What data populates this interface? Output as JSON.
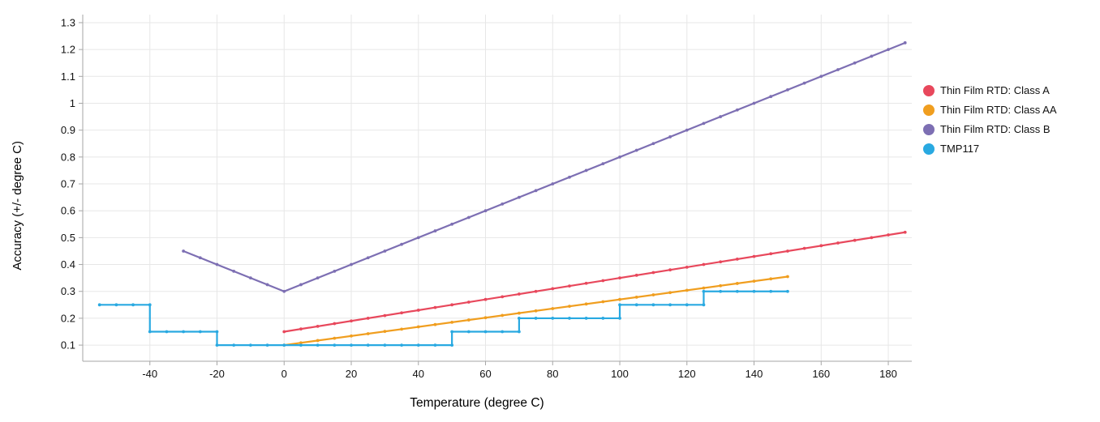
{
  "chart_data": {
    "type": "line",
    "title": "",
    "xlabel": "Temperature (degree C)",
    "ylabel": "Accuracy (+/- degree C)",
    "xlim": [
      -60,
      187
    ],
    "ylim": [
      0.04,
      1.33
    ],
    "grid": true,
    "legend_position": "right",
    "axis_color": "#a6a6a6",
    "grid_color": "#e7e7e7",
    "tick_label_color": "#111111",
    "marker_step": 5,
    "x_ticks": [
      {
        "value": -40,
        "label": "-40"
      },
      {
        "value": -20,
        "label": "-20"
      },
      {
        "value": 0,
        "label": "0"
      },
      {
        "value": 20,
        "label": "20"
      },
      {
        "value": 40,
        "label": "40"
      },
      {
        "value": 60,
        "label": "60"
      },
      {
        "value": 80,
        "label": "80"
      },
      {
        "value": 100,
        "label": "100"
      },
      {
        "value": 120,
        "label": "120"
      },
      {
        "value": 140,
        "label": "140"
      },
      {
        "value": 160,
        "label": "160"
      },
      {
        "value": 180,
        "label": "180"
      }
    ],
    "y_ticks": [
      {
        "value": 0.1,
        "label": "0.1"
      },
      {
        "value": 0.2,
        "label": "0.2"
      },
      {
        "value": 0.3,
        "label": "0.3"
      },
      {
        "value": 0.4,
        "label": "0.4"
      },
      {
        "value": 0.5,
        "label": "0.5"
      },
      {
        "value": 0.6,
        "label": "0.6"
      },
      {
        "value": 0.7,
        "label": "0.7"
      },
      {
        "value": 0.8,
        "label": "0.8"
      },
      {
        "value": 0.9,
        "label": "0.9"
      },
      {
        "value": 1.0,
        "label": "1"
      },
      {
        "value": 1.1,
        "label": "1.1"
      },
      {
        "value": 1.2,
        "label": "1.2"
      },
      {
        "value": 1.3,
        "label": "1.3"
      }
    ],
    "series": [
      {
        "name": "Thin Film RTD: Class A",
        "color": "#e8485c",
        "points": [
          [
            0,
            0.15
          ],
          [
            185,
            0.52
          ]
        ]
      },
      {
        "name": "Thin Film RTD: Class AA",
        "color": "#f09e1f",
        "points": [
          [
            0,
            0.1
          ],
          [
            150,
            0.355
          ]
        ]
      },
      {
        "name": "Thin Film RTD: Class B",
        "color": "#7d6fb3",
        "points": [
          [
            -30,
            0.45
          ],
          [
            0,
            0.3
          ],
          [
            185,
            1.225
          ]
        ]
      },
      {
        "name": "TMP117",
        "color": "#29a9e1",
        "points": [
          [
            -55,
            0.25
          ],
          [
            -40,
            0.25
          ],
          [
            -40,
            0.15
          ],
          [
            -20,
            0.15
          ],
          [
            -20,
            0.1
          ],
          [
            50,
            0.1
          ],
          [
            50,
            0.15
          ],
          [
            70,
            0.15
          ],
          [
            70,
            0.2
          ],
          [
            100,
            0.2
          ],
          [
            100,
            0.25
          ],
          [
            125,
            0.25
          ],
          [
            125,
            0.3
          ],
          [
            150,
            0.3
          ]
        ]
      }
    ]
  }
}
